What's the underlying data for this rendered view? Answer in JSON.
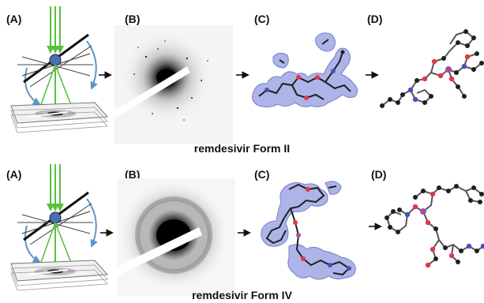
{
  "colors": {
    "beam_green": "#56c13f",
    "rotation_blue": "#5b95c9",
    "density_fill": "#a9b1e6",
    "density_stroke": "#6f76c9",
    "atom_carbon": "#1f1f1f",
    "atom_oxygen": "#e0384b",
    "atom_nitrogen": "#4a52b8",
    "atom_phosphorus": "#a94aa0"
  },
  "rows": [
    {
      "caption": "remdesivir Form II",
      "panels": [
        {
          "label": "(A)",
          "icon": "electron-diffraction-setup-icon"
        },
        {
          "label": "(B)",
          "icon": "diffraction-pattern-icon"
        },
        {
          "label": "(C)",
          "icon": "electron-density-map-icon"
        },
        {
          "label": "(D)",
          "icon": "molecular-structure-icon"
        }
      ]
    },
    {
      "caption": "remdesivir Form IV",
      "panels": [
        {
          "label": "(A)",
          "icon": "electron-diffraction-setup-icon"
        },
        {
          "label": "(B)",
          "icon": "diffraction-pattern-icon"
        },
        {
          "label": "(C)",
          "icon": "electron-density-map-icon"
        },
        {
          "label": "(D)",
          "icon": "molecular-structure-icon"
        }
      ]
    }
  ]
}
